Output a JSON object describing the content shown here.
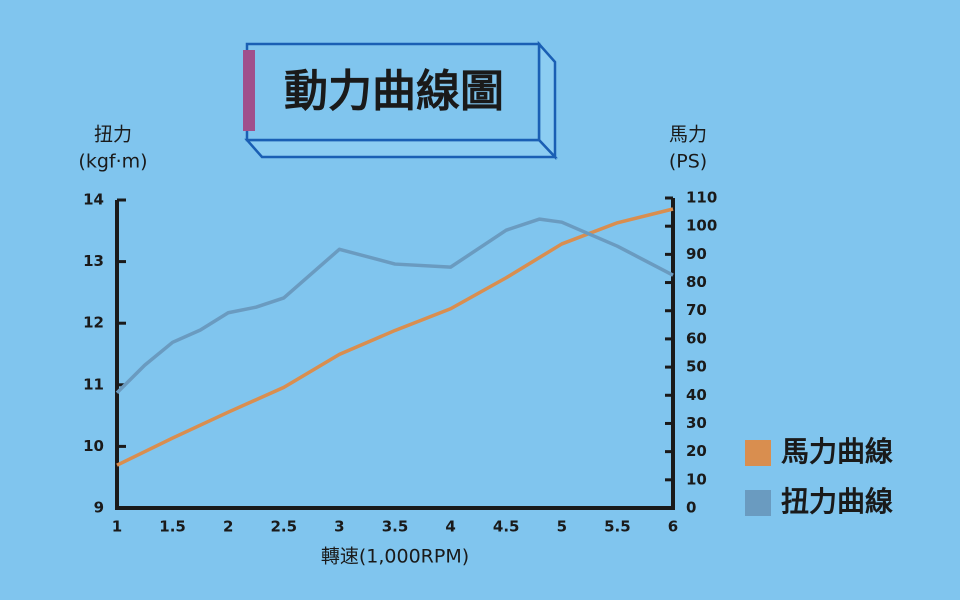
{
  "chart_data": {
    "type": "line",
    "title": "動力曲線圖",
    "y_label": "扭力",
    "y_unit": "(kgf·m)",
    "y2_label": "馬力",
    "y2_unit": "(PS)",
    "x_label": "轉速(1,000RPM)",
    "xlim": [
      1,
      6
    ],
    "xticks": [
      1,
      1.5,
      2,
      2.5,
      3,
      3.5,
      4,
      4.5,
      5,
      5.5,
      6
    ],
    "ylim": [
      9,
      14
    ],
    "yticks": [
      9,
      10,
      11,
      12,
      13,
      14
    ],
    "y2lim": [
      0,
      110
    ],
    "y2ticks": [
      0,
      10,
      20,
      30,
      40,
      50,
      60,
      70,
      80,
      90,
      100,
      110
    ],
    "legend": "lower right",
    "series": [
      {
        "name": "馬力曲線",
        "color": "#d98e4f",
        "axis": "y2",
        "x": [
          1,
          1.5,
          2,
          2.5,
          3,
          3.5,
          4,
          4.5,
          5,
          5.5,
          6
        ],
        "values": [
          15.2,
          24.8,
          34,
          42.8,
          54.5,
          63,
          70.7,
          81.7,
          93.7,
          101.2,
          106.1
        ]
      },
      {
        "name": "扭力曲線",
        "color": "#6a9bc0",
        "axis": "y",
        "x": [
          1,
          1.25,
          1.5,
          1.75,
          2,
          2.25,
          2.5,
          3,
          3.5,
          4,
          4.5,
          4.8,
          5,
          5.5,
          6
        ],
        "values": [
          10.87,
          11.32,
          11.69,
          11.89,
          12.17,
          12.26,
          12.41,
          13.2,
          12.96,
          12.91,
          13.51,
          13.69,
          13.64,
          13.25,
          12.78
        ]
      }
    ]
  }
}
